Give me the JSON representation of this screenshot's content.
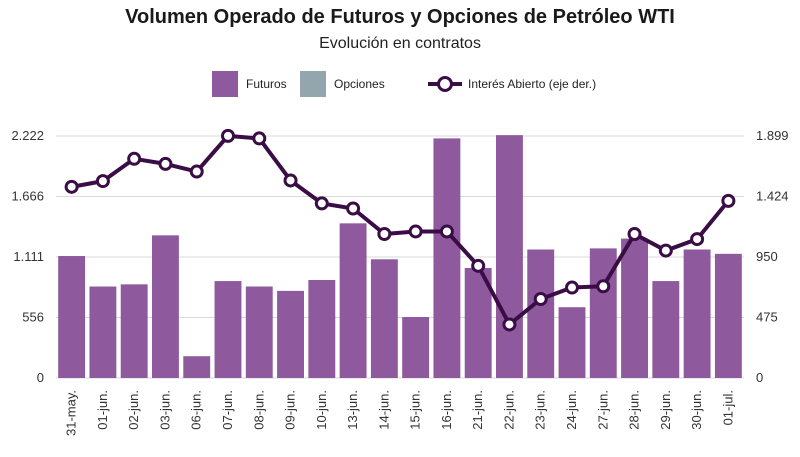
{
  "chart_data": {
    "type": "bar",
    "title": "Volumen Operado de Futuros y Opciones de Petróleo WTI",
    "subtitle": "Evolución en contratos",
    "categories": [
      "31-may.",
      "01-jun.",
      "02-jun.",
      "03-jun.",
      "06-jun.",
      "07-jun.",
      "08-jun.",
      "09-jun.",
      "10-jun.",
      "13-jun.",
      "14-jun.",
      "15-jun.",
      "16-jun.",
      "21-jun.",
      "22-jun.",
      "23-jun.",
      "24-jun.",
      "27-jun.",
      "28-jun.",
      "29-jun.",
      "30-jun.",
      "01-jul."
    ],
    "series": [
      {
        "name": "Futuros",
        "kind": "bar",
        "axis": "left",
        "color": "#8e5a9d",
        "values": [
          1120,
          840,
          860,
          1310,
          200,
          890,
          840,
          800,
          900,
          1420,
          1090,
          560,
          2200,
          1010,
          2230,
          1180,
          650,
          1190,
          1280,
          890,
          1180,
          1140
        ]
      },
      {
        "name": "Opciones",
        "kind": "bar",
        "axis": "left",
        "color": "#93a6ae",
        "values": [
          0,
          0,
          0,
          0,
          0,
          0,
          0,
          0,
          0,
          0,
          0,
          0,
          0,
          0,
          0,
          0,
          0,
          0,
          0,
          0,
          0,
          0
        ]
      },
      {
        "name": "Interés Abierto (eje der.)",
        "kind": "line",
        "axis": "right",
        "color": "#3a0d46",
        "values": [
          1500,
          1545,
          1720,
          1680,
          1620,
          1900,
          1880,
          1550,
          1370,
          1330,
          1130,
          1150,
          1150,
          880,
          420,
          620,
          710,
          720,
          1130,
          1000,
          1090,
          1390
        ]
      }
    ],
    "y_left": {
      "min": 0,
      "max": 2222,
      "ticks": [
        0,
        556,
        1111,
        1666,
        2222
      ],
      "tick_labels": [
        "0",
        "556",
        "1.111",
        "1.666",
        "2.222"
      ]
    },
    "y_right": {
      "min": 0,
      "max": 1899,
      "ticks": [
        0,
        475,
        950,
        1424,
        1899
      ],
      "tick_labels": [
        "0",
        "475",
        "950",
        "1.424",
        "1.899"
      ]
    },
    "grid": true,
    "legend_position": "top"
  }
}
